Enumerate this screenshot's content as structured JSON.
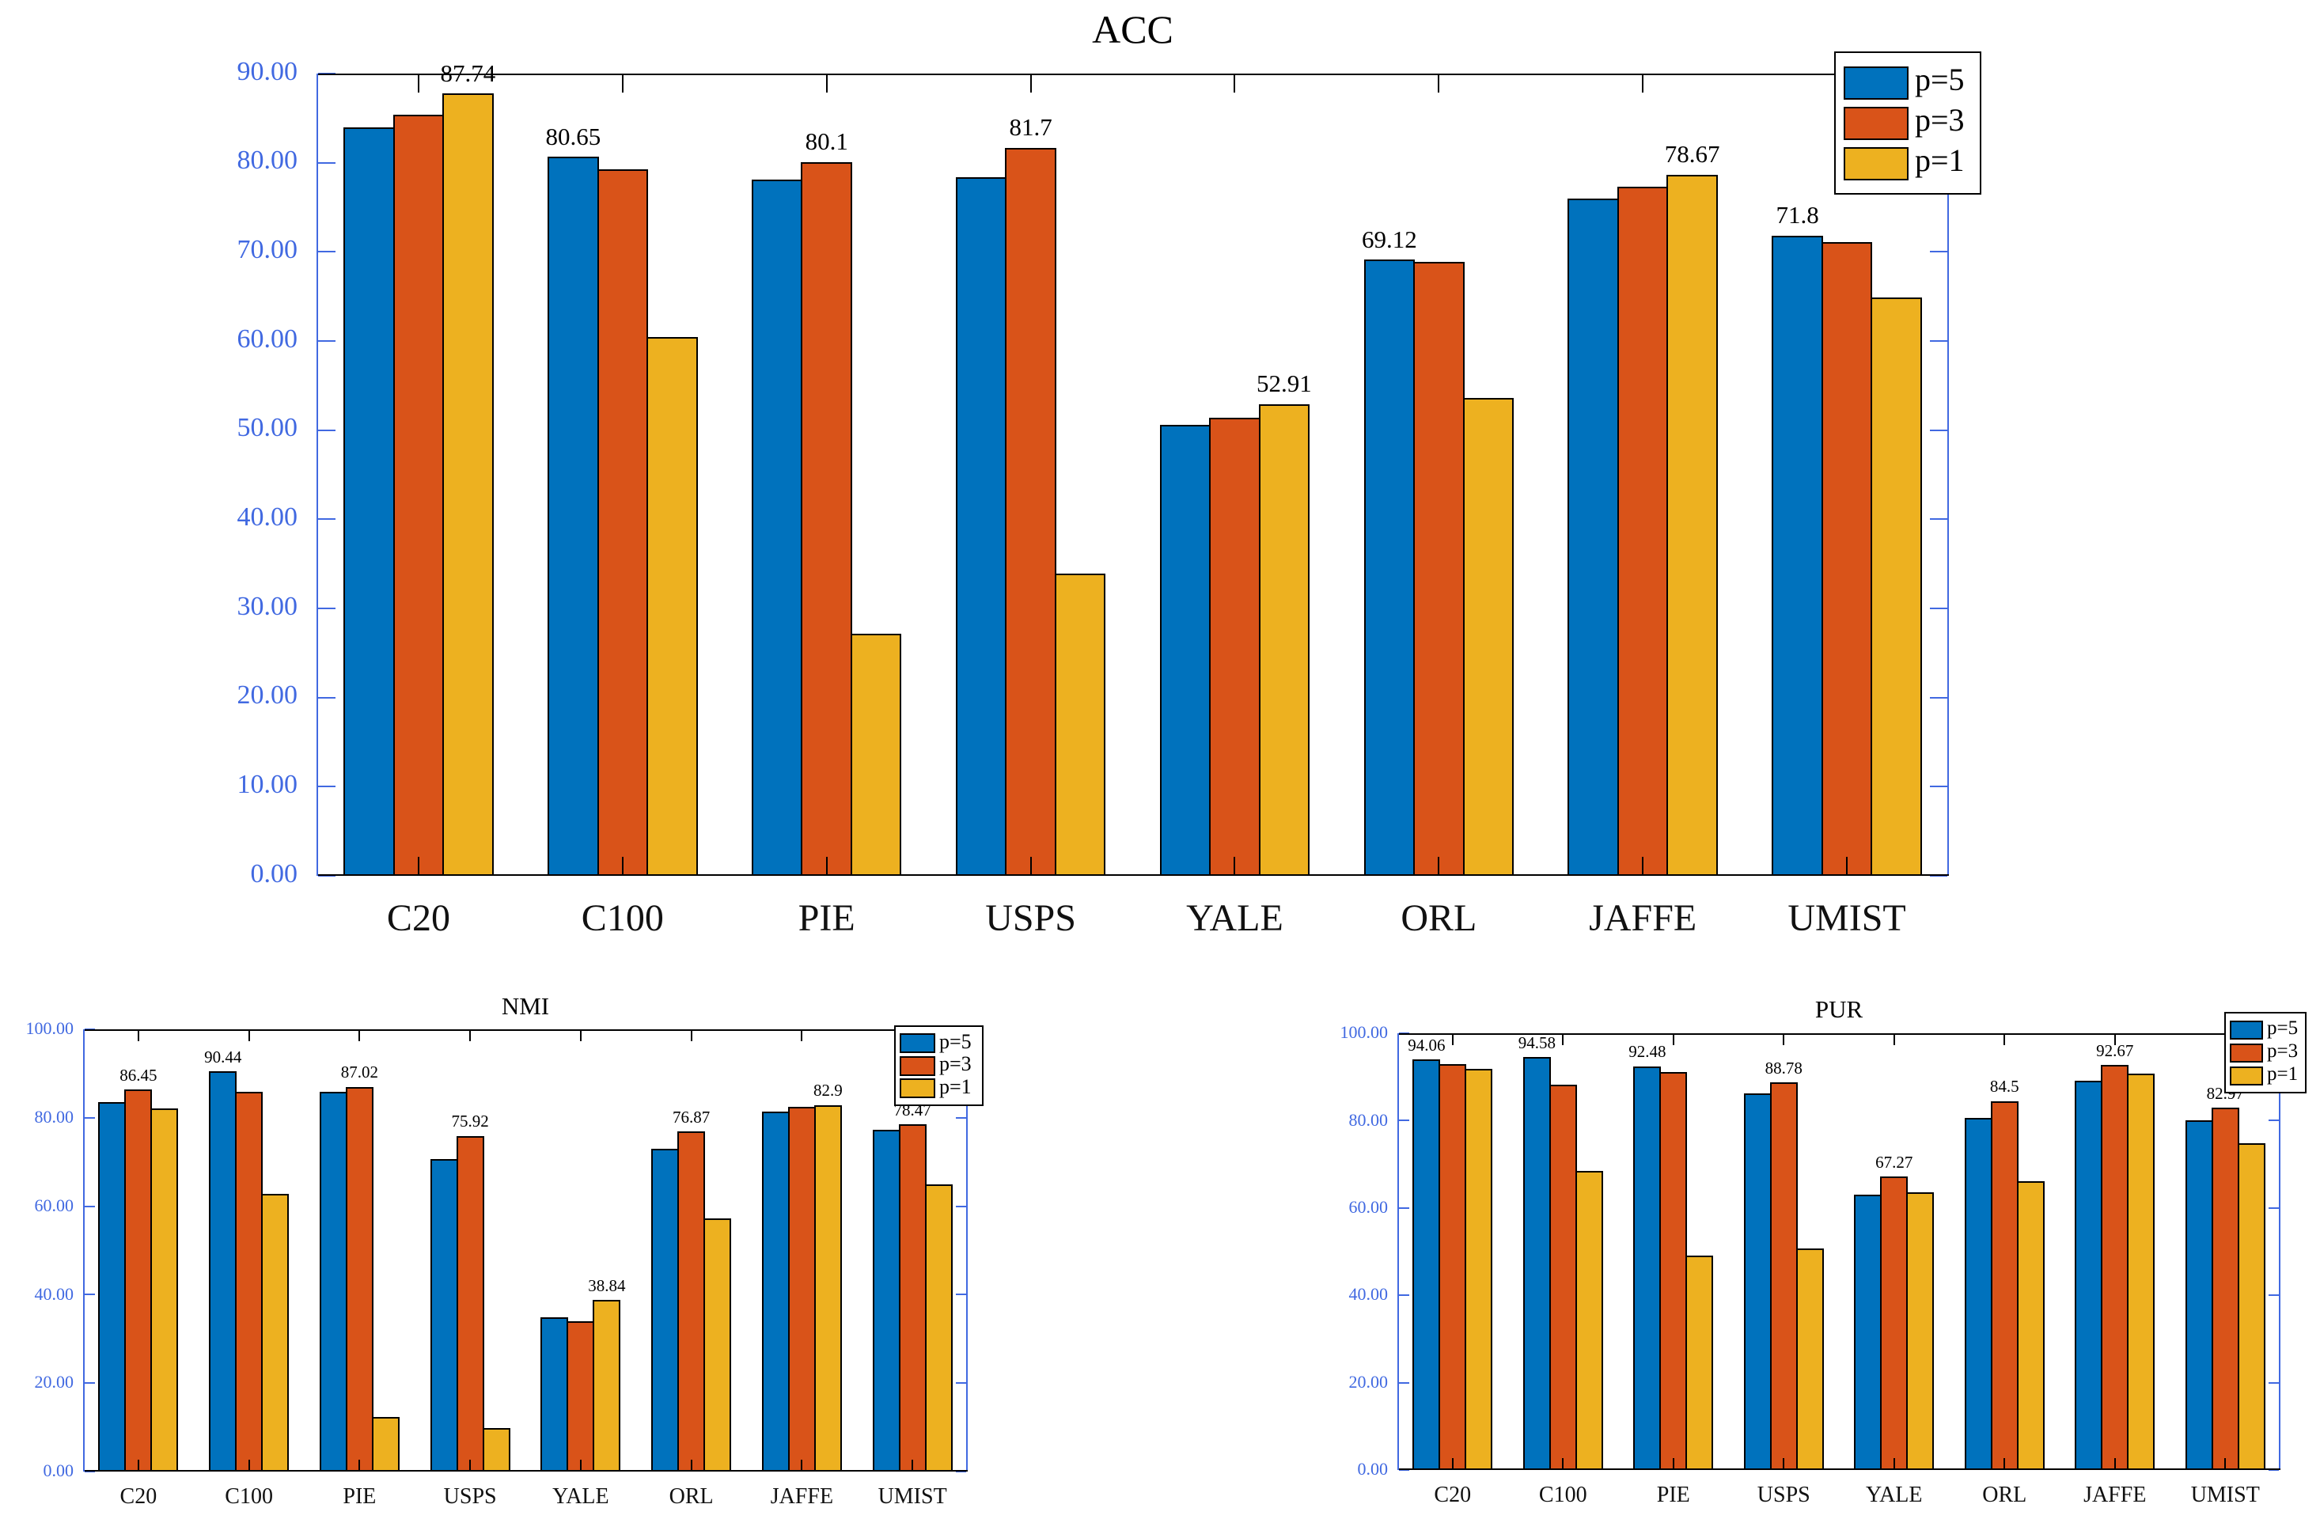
{
  "figure": {
    "background": "#ffffff",
    "axis_color": "#4169E1",
    "tick_label_color": "#4169E1",
    "category_label_color": "#111111",
    "bar_edge_color": "#000000",
    "legend_background": "#ffffff",
    "legend_border_color": "#000000"
  },
  "legend": {
    "items": [
      {
        "label": "p=5",
        "color": "#0072BD"
      },
      {
        "label": "p=3",
        "color": "#D95319"
      },
      {
        "label": "p=1",
        "color": "#EDB120"
      }
    ]
  },
  "chart_data": [
    {
      "id": "acc",
      "type": "bar",
      "title": "ACC",
      "categories": [
        "C20",
        "C100",
        "PIE",
        "USPS",
        "YALE",
        "ORL",
        "JAFFE",
        "UMIST"
      ],
      "series": [
        {
          "name": "p=5",
          "color": "#0072BD",
          "values": [
            84.0,
            80.65,
            78.1,
            78.4,
            50.6,
            69.12,
            76.0,
            71.8
          ]
        },
        {
          "name": "p=3",
          "color": "#D95319",
          "values": [
            85.4,
            79.3,
            80.1,
            81.7,
            51.4,
            68.9,
            77.3,
            71.1
          ]
        },
        {
          "name": "p=1",
          "color": "#EDB120",
          "values": [
            87.74,
            60.4,
            27.2,
            33.9,
            52.91,
            53.6,
            78.67,
            64.9
          ]
        }
      ],
      "bar_labels": [
        {
          "category": "C20",
          "series_index": 2,
          "text": "87.74"
        },
        {
          "category": "C100",
          "series_index": 0,
          "text": "80.65"
        },
        {
          "category": "PIE",
          "series_index": 1,
          "text": "80.1"
        },
        {
          "category": "USPS",
          "series_index": 1,
          "text": "81.7"
        },
        {
          "category": "YALE",
          "series_index": 2,
          "text": "52.91"
        },
        {
          "category": "ORL",
          "series_index": 0,
          "text": "69.12"
        },
        {
          "category": "JAFFE",
          "series_index": 2,
          "text": "78.67"
        },
        {
          "category": "UMIST",
          "series_index": 0,
          "text": "71.8"
        }
      ],
      "ylim": [
        0,
        90
      ],
      "ytick_labels": [
        "0.00",
        "10.00",
        "20.00",
        "30.00",
        "40.00",
        "50.00",
        "60.00",
        "70.00",
        "80.00",
        "90.00"
      ],
      "grid": false,
      "legend_position": "top-right"
    },
    {
      "id": "nmi",
      "type": "bar",
      "title": "NMI",
      "categories": [
        "C20",
        "C100",
        "PIE",
        "USPS",
        "YALE",
        "ORL",
        "JAFFE",
        "UMIST"
      ],
      "series": [
        {
          "name": "p=5",
          "color": "#0072BD",
          "values": [
            83.5,
            90.44,
            85.9,
            70.6,
            34.9,
            73.0,
            81.4,
            77.2
          ]
        },
        {
          "name": "p=3",
          "color": "#D95319",
          "values": [
            86.45,
            85.8,
            87.02,
            75.92,
            34.0,
            76.87,
            82.5,
            78.47
          ]
        },
        {
          "name": "p=1",
          "color": "#EDB120",
          "values": [
            82.2,
            62.8,
            12.4,
            9.9,
            38.84,
            57.2,
            82.9,
            65.0
          ]
        }
      ],
      "bar_labels": [
        {
          "category": "C20",
          "series_index": 1,
          "text": "86.45"
        },
        {
          "category": "C100",
          "series_index": 0,
          "text": "90.44"
        },
        {
          "category": "PIE",
          "series_index": 1,
          "text": "87.02"
        },
        {
          "category": "USPS",
          "series_index": 1,
          "text": "75.92"
        },
        {
          "category": "YALE",
          "series_index": 2,
          "text": "38.84"
        },
        {
          "category": "ORL",
          "series_index": 1,
          "text": "76.87"
        },
        {
          "category": "JAFFE",
          "series_index": 2,
          "text": "82.9"
        },
        {
          "category": "UMIST",
          "series_index": 1,
          "text": "78.47"
        }
      ],
      "ylim": [
        0,
        100
      ],
      "ytick_labels": [
        "0.00",
        "20.00",
        "40.00",
        "60.00",
        "80.00",
        "100.00"
      ],
      "grid": false,
      "legend_position": "top-right"
    },
    {
      "id": "pur",
      "type": "bar",
      "title": "PUR",
      "categories": [
        "C20",
        "C100",
        "PIE",
        "USPS",
        "YALE",
        "ORL",
        "JAFFE",
        "UMIST"
      ],
      "series": [
        {
          "name": "p=5",
          "color": "#0072BD",
          "values": [
            94.06,
            94.58,
            92.48,
            86.3,
            63.0,
            80.7,
            89.1,
            80.0
          ]
        },
        {
          "name": "p=3",
          "color": "#D95319",
          "values": [
            92.9,
            88.2,
            91.1,
            88.78,
            67.27,
            84.5,
            92.67,
            82.97
          ]
        },
        {
          "name": "p=1",
          "color": "#EDB120",
          "values": [
            91.9,
            68.5,
            49.1,
            50.7,
            63.6,
            66.1,
            90.7,
            74.9
          ]
        }
      ],
      "bar_labels": [
        {
          "category": "C20",
          "series_index": 0,
          "text": "94.06"
        },
        {
          "category": "C100",
          "series_index": 0,
          "text": "94.58"
        },
        {
          "category": "PIE",
          "series_index": 0,
          "text": "92.48"
        },
        {
          "category": "USPS",
          "series_index": 1,
          "text": "88.78"
        },
        {
          "category": "YALE",
          "series_index": 1,
          "text": "67.27"
        },
        {
          "category": "ORL",
          "series_index": 1,
          "text": "84.5"
        },
        {
          "category": "JAFFE",
          "series_index": 1,
          "text": "92.67"
        },
        {
          "category": "UMIST",
          "series_index": 1,
          "text": "82.97"
        }
      ],
      "ylim": [
        0,
        100
      ],
      "ytick_labels": [
        "0.00",
        "20.00",
        "40.00",
        "60.00",
        "80.00",
        "100.00"
      ],
      "grid": false,
      "legend_position": "top-right"
    }
  ]
}
